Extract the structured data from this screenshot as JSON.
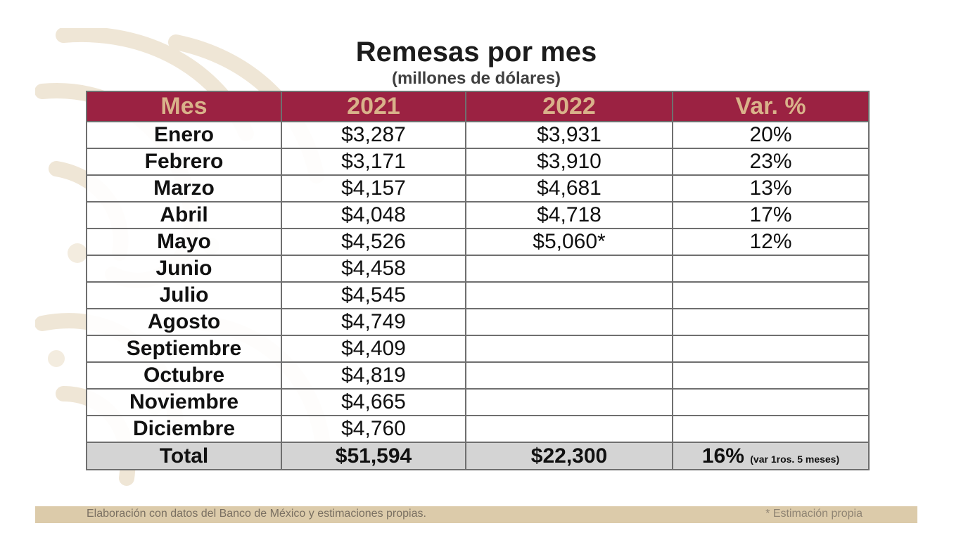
{
  "title": "Remesas por mes",
  "subtitle": "(millones de dólares)",
  "colors": {
    "header_bg": "#9b2242",
    "header_text": "#d9b28a",
    "total_bg": "#d4d4d4",
    "footer_bg": "#dccbaa"
  },
  "table": {
    "headers": [
      "Mes",
      "2021",
      "2022",
      "Var. %"
    ],
    "rows": [
      [
        "Enero",
        "$3,287",
        "$3,931",
        "20%"
      ],
      [
        "Febrero",
        "$3,171",
        "$3,910",
        "23%"
      ],
      [
        "Marzo",
        "$4,157",
        "$4,681",
        "13%"
      ],
      [
        "Abril",
        "$4,048",
        "$4,718",
        "17%"
      ],
      [
        "Mayo",
        "$4,526",
        "$5,060*",
        "12%"
      ],
      [
        "Junio",
        "$4,458",
        "",
        ""
      ],
      [
        "Julio",
        "$4,545",
        "",
        ""
      ],
      [
        "Agosto",
        "$4,749",
        "",
        ""
      ],
      [
        "Septiembre",
        "$4,409",
        "",
        ""
      ],
      [
        "Octubre",
        "$4,819",
        "",
        ""
      ],
      [
        "Noviembre",
        "$4,665",
        "",
        ""
      ],
      [
        "Diciembre",
        "$4,760",
        "",
        ""
      ]
    ],
    "total": {
      "label": "Total",
      "y2021": "$51,594",
      "y2022": "$22,300",
      "var": "16%",
      "var_note": "(var 1ros. 5 meses)"
    }
  },
  "footer": {
    "source": "Elaboración con datos del Banco de México y estimaciones propias.",
    "estimate_note": "* Estimación propia"
  }
}
